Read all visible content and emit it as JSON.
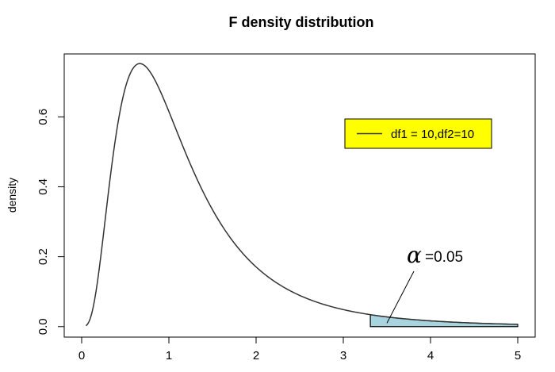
{
  "chart_data": {
    "type": "line",
    "title": "F density distribution",
    "xlabel": "",
    "ylabel": "density",
    "xlim": [
      -0.2,
      5.2
    ],
    "ylim": [
      -0.03,
      0.78
    ],
    "x_ticks": [
      0,
      1,
      2,
      3,
      4,
      5
    ],
    "y_ticks": [
      0.0,
      0.2,
      0.4,
      0.6
    ],
    "x_tick_labels": [
      "0",
      "1",
      "2",
      "3",
      "4",
      "5"
    ],
    "y_tick_labels": [
      "0.0",
      "0.2",
      "0.4",
      "0.6"
    ],
    "grid": false,
    "series": [
      {
        "name": "df1 = 10,df2=10",
        "df1": 10,
        "df2": 10,
        "color": "#333333",
        "x": [
          0.05,
          0.1,
          0.2,
          0.3,
          0.4,
          0.5,
          0.6,
          0.67,
          0.8,
          1.0,
          1.2,
          1.5,
          1.75,
          2.0,
          2.5,
          3.0,
          3.5,
          4.0,
          4.5,
          5.0
        ],
        "y": [
          0.0,
          0.004,
          0.06,
          0.227,
          0.437,
          0.611,
          0.717,
          0.748,
          0.723,
          0.615,
          0.489,
          0.327,
          0.224,
          0.156,
          0.078,
          0.042,
          0.024,
          0.014,
          0.009,
          0.006
        ]
      }
    ],
    "legend": {
      "label": "df1 = 10,df2=10",
      "placement": "top-right",
      "background": "#ffff00"
    },
    "shaded_region": {
      "from_x": 3.31,
      "to_x": 5.0,
      "color": "#a8d4e0",
      "alpha_symbol": "α",
      "alpha_label": "=0.05"
    }
  }
}
